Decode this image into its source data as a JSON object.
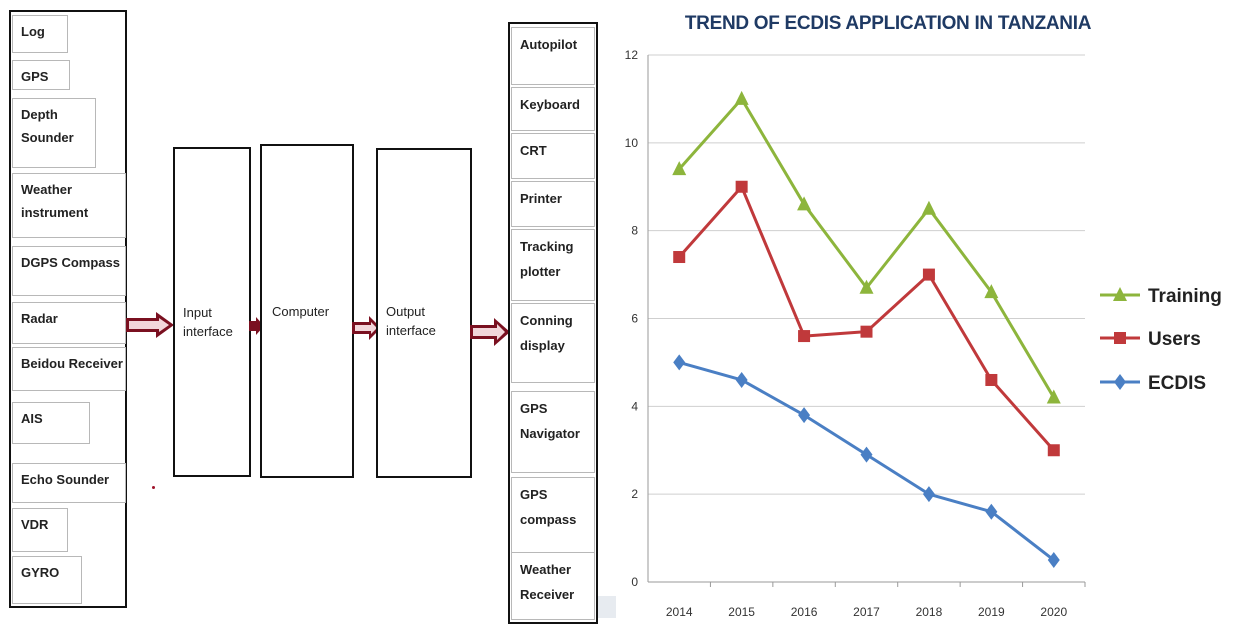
{
  "diagram": {
    "sensors": [
      "Log",
      "GPS",
      "Depth Sounder",
      "Weather instrument",
      "DGPS Compass",
      "Radar",
      "Beidou Receiver",
      "AIS",
      "Echo Sounder",
      "VDR",
      "GYRO"
    ],
    "blocks": {
      "input_interface": "Input interface",
      "computer": "Computer",
      "output_interface": "Output interface"
    },
    "outputs": [
      "Autopilot",
      "Keyboard",
      "CRT",
      "Printer",
      "Tracking plotter",
      "Conning display",
      "GPS Navigator",
      "GPS compass",
      "Weather Receiver"
    ],
    "arrow_color": "#7a1020"
  },
  "chart_data": {
    "type": "line",
    "title": "TREND OF ECDIS APPLICATION IN TANZANIA",
    "x": [
      "2014",
      "2015",
      "2016",
      "2017",
      "2018",
      "2019",
      "2020"
    ],
    "ylim": [
      0,
      12
    ],
    "yticks": [
      0,
      2,
      4,
      6,
      8,
      10,
      12
    ],
    "grid": true,
    "legend_position": "right",
    "series": [
      {
        "name": "Training",
        "values": [
          9.4,
          11.0,
          8.6,
          6.7,
          8.5,
          6.6,
          4.2
        ],
        "color": "#8db53c",
        "marker": "triangle"
      },
      {
        "name": "Users",
        "values": [
          7.4,
          9.0,
          5.6,
          5.7,
          7.0,
          4.6,
          3.0
        ],
        "color": "#c0393b",
        "marker": "square"
      },
      {
        "name": "ECDIS",
        "values": [
          5.0,
          4.6,
          3.8,
          2.9,
          2.0,
          1.6,
          0.5
        ],
        "color": "#4a7fc4",
        "marker": "diamond"
      }
    ]
  }
}
